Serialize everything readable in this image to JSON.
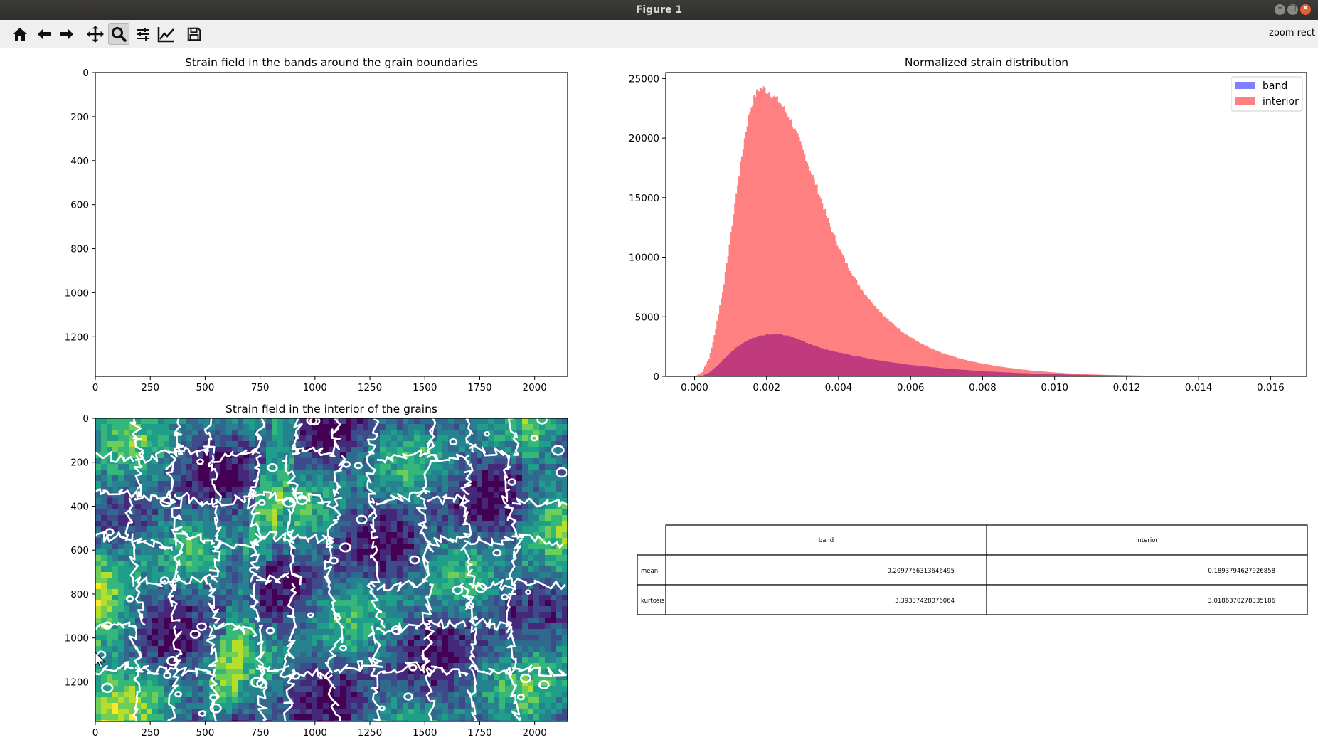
{
  "window": {
    "title": "Figure 1"
  },
  "toolbar": {
    "buttons": [
      {
        "name": "home-button",
        "icon": "home-icon"
      },
      {
        "name": "back-button",
        "icon": "arrow-left-icon"
      },
      {
        "name": "forward-button",
        "icon": "arrow-right-icon"
      },
      {
        "name": "pan-button",
        "icon": "move-icon"
      },
      {
        "name": "zoom-button",
        "icon": "magnifier-icon"
      },
      {
        "name": "subplots-button",
        "icon": "sliders-icon"
      },
      {
        "name": "edit-axes-button",
        "icon": "chart-line-icon"
      },
      {
        "name": "save-button",
        "icon": "floppy-icon"
      }
    ],
    "mode_text": "zoom rect"
  },
  "chart_data": [
    {
      "type": "heatmap",
      "title": "Strain field in the bands around the grain boundaries",
      "x_ticks": [
        "0",
        "250",
        "500",
        "750",
        "1000",
        "1250",
        "1500",
        "1750",
        "2000"
      ],
      "y_ticks": [
        "0",
        "200",
        "400",
        "600",
        "800",
        "1000",
        "1200"
      ],
      "xlim": [
        0,
        2150
      ],
      "ylim": [
        1380,
        0
      ],
      "content": "empty"
    },
    {
      "type": "bar",
      "title": "Normalized strain distribution",
      "x_ticks": [
        "0.000",
        "0.002",
        "0.004",
        "0.006",
        "0.008",
        "0.010",
        "0.012",
        "0.014",
        "0.016"
      ],
      "y_ticks": [
        "0",
        "5000",
        "10000",
        "15000",
        "20000",
        "25000"
      ],
      "xlim": [
        -0.0008,
        0.017
      ],
      "ylim": [
        0,
        25500
      ],
      "legend_position": "top-right",
      "series": [
        {
          "name": "band",
          "color": "#8080ff",
          "x": [
            0.0,
            0.0002,
            0.0004,
            0.0006,
            0.0008,
            0.001,
            0.0012,
            0.0014,
            0.0016,
            0.0018,
            0.002,
            0.0022,
            0.0024,
            0.0026,
            0.0028,
            0.003,
            0.0032,
            0.0034,
            0.0036,
            0.004,
            0.0045,
            0.005,
            0.006,
            0.007,
            0.008,
            0.009,
            0.01,
            0.011,
            0.012,
            0.013,
            0.014,
            0.015
          ],
          "y": [
            0,
            50,
            300,
            800,
            1400,
            2000,
            2500,
            2900,
            3200,
            3400,
            3500,
            3550,
            3500,
            3400,
            3200,
            2950,
            2700,
            2500,
            2300,
            2000,
            1700,
            1400,
            950,
            650,
            430,
            280,
            180,
            110,
            70,
            40,
            20,
            0
          ]
        },
        {
          "name": "interior",
          "color": "#ff8080",
          "x": [
            0.0,
            0.0002,
            0.0004,
            0.0005,
            0.0006,
            0.0007,
            0.0008,
            0.0009,
            0.001,
            0.0011,
            0.0012,
            0.0013,
            0.0014,
            0.0015,
            0.0016,
            0.0017,
            0.0018,
            0.0019,
            0.002,
            0.0021,
            0.0022,
            0.0023,
            0.0024,
            0.0025,
            0.0026,
            0.0027,
            0.0028,
            0.0029,
            0.003,
            0.0031,
            0.0032,
            0.0033,
            0.0034,
            0.0035,
            0.0036,
            0.0037,
            0.0038,
            0.004,
            0.0042,
            0.0044,
            0.0046,
            0.0048,
            0.005,
            0.0052,
            0.0054,
            0.0056,
            0.0058,
            0.006,
            0.0062,
            0.0064,
            0.0066,
            0.0068,
            0.007,
            0.0072,
            0.0074,
            0.0076,
            0.0078,
            0.008,
            0.0082,
            0.0085,
            0.0088,
            0.0091,
            0.0094,
            0.0097,
            0.01,
            0.0103,
            0.0106,
            0.011,
            0.0115,
            0.012,
            0.0125,
            0.013,
            0.0135,
            0.014,
            0.0145,
            0.015
          ],
          "y": [
            0,
            300,
            1500,
            2700,
            4200,
            5900,
            7500,
            9500,
            11800,
            14000,
            16200,
            18300,
            20200,
            21800,
            22900,
            23700,
            24100,
            24200,
            24000,
            23800,
            23500,
            23200,
            22900,
            22400,
            21900,
            21300,
            20600,
            19900,
            19100,
            18300,
            17500,
            16700,
            15900,
            15000,
            14100,
            13200,
            12400,
            10900,
            9600,
            8500,
            7500,
            6700,
            6000,
            5300,
            4700,
            4200,
            3700,
            3300,
            2900,
            2600,
            2300,
            2050,
            1850,
            1650,
            1480,
            1330,
            1200,
            1080,
            960,
            820,
            690,
            580,
            480,
            400,
            330,
            270,
            220,
            170,
            120,
            90,
            65,
            45,
            30,
            20,
            10,
            0
          ]
        }
      ]
    },
    {
      "type": "heatmap",
      "title": "Strain field in the interior of the grains",
      "x_ticks": [
        "0",
        "250",
        "500",
        "750",
        "1000",
        "1250",
        "1500",
        "1750",
        "2000"
      ],
      "y_ticks": [
        "0",
        "200",
        "400",
        "600",
        "800",
        "1000",
        "1200"
      ],
      "xlim": [
        0,
        2150
      ],
      "ylim": [
        1380,
        0
      ],
      "colormap": "viridis",
      "overlay": "white grain boundary contours"
    },
    {
      "type": "table",
      "columns": [
        "band",
        "interior"
      ],
      "rows": [
        {
          "label": "mean",
          "values": [
            "0.2097756313646495",
            "0.1893794627926858"
          ]
        },
        {
          "label": "kurtosis",
          "values": [
            "3.39337428076064",
            "3.0186370278335186"
          ]
        }
      ]
    }
  ]
}
